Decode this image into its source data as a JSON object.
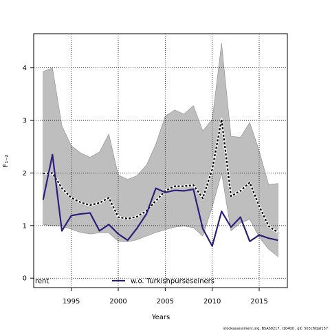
{
  "chart_data": {
    "type": "line",
    "title": "",
    "xlabel": "Years",
    "ylabel": "F₁₋₂",
    "xlim": [
      1991,
      2018
    ],
    "ylim": [
      -0.18,
      4.65
    ],
    "xticks": [
      1995,
      2000,
      2005,
      2010,
      2015
    ],
    "yticks": [
      0,
      1,
      2,
      3,
      4
    ],
    "grid": "dotted",
    "legend_placement": "bottom",
    "x": [
      1992,
      1993,
      1994,
      1995,
      1996,
      1997,
      1998,
      1999,
      2000,
      2001,
      2002,
      2003,
      2004,
      2005,
      2006,
      2007,
      2008,
      2009,
      2010,
      2011,
      2012,
      2013,
      2014,
      2015,
      2016,
      2017
    ],
    "band": {
      "upper": [
        3.93,
        4.0,
        2.9,
        2.52,
        2.38,
        2.3,
        2.4,
        2.74,
        1.96,
        1.88,
        1.95,
        2.15,
        2.55,
        3.08,
        3.2,
        3.12,
        3.28,
        2.8,
        3.02,
        4.47,
        2.7,
        2.68,
        2.96,
        2.42,
        1.78,
        1.8
      ],
      "lower": [
        1.02,
        1.0,
        0.99,
        0.93,
        0.87,
        0.84,
        0.86,
        0.86,
        0.7,
        0.69,
        0.73,
        0.8,
        0.87,
        0.92,
        0.97,
        0.99,
        0.96,
        0.8,
        1.35,
        2.0,
        0.9,
        1.05,
        1.12,
        0.78,
        0.55,
        0.41
      ]
    },
    "series": [
      {
        "name": "rent",
        "style": "dashed",
        "values": [
          1.99,
          2.0,
          1.71,
          1.53,
          1.44,
          1.39,
          1.43,
          1.53,
          1.16,
          1.13,
          1.17,
          1.28,
          1.47,
          1.66,
          1.75,
          1.75,
          1.77,
          1.52,
          2.07,
          3.02,
          1.56,
          1.66,
          1.82,
          1.37,
          0.99,
          0.87
        ]
      },
      {
        "name": "w.o. Turkishpurseseiners",
        "style": "solid",
        "values": [
          1.49,
          2.35,
          0.9,
          1.19,
          1.22,
          1.24,
          0.9,
          1.02,
          0.84,
          0.72,
          0.95,
          1.22,
          1.71,
          1.63,
          1.67,
          1.66,
          1.69,
          0.94,
          0.61,
          1.27,
          0.97,
          1.16,
          0.7,
          0.82,
          0.76,
          0.72
        ]
      }
    ],
    "colors": {
      "band": "#bebebe",
      "band_edge": "#8a8a8a",
      "dashed": "#000000",
      "solid": "#2b1f7a",
      "grid": "#000000"
    }
  },
  "footer": "stockassessment.org, BSAS9217, r10400 , git: 503cf91af157"
}
